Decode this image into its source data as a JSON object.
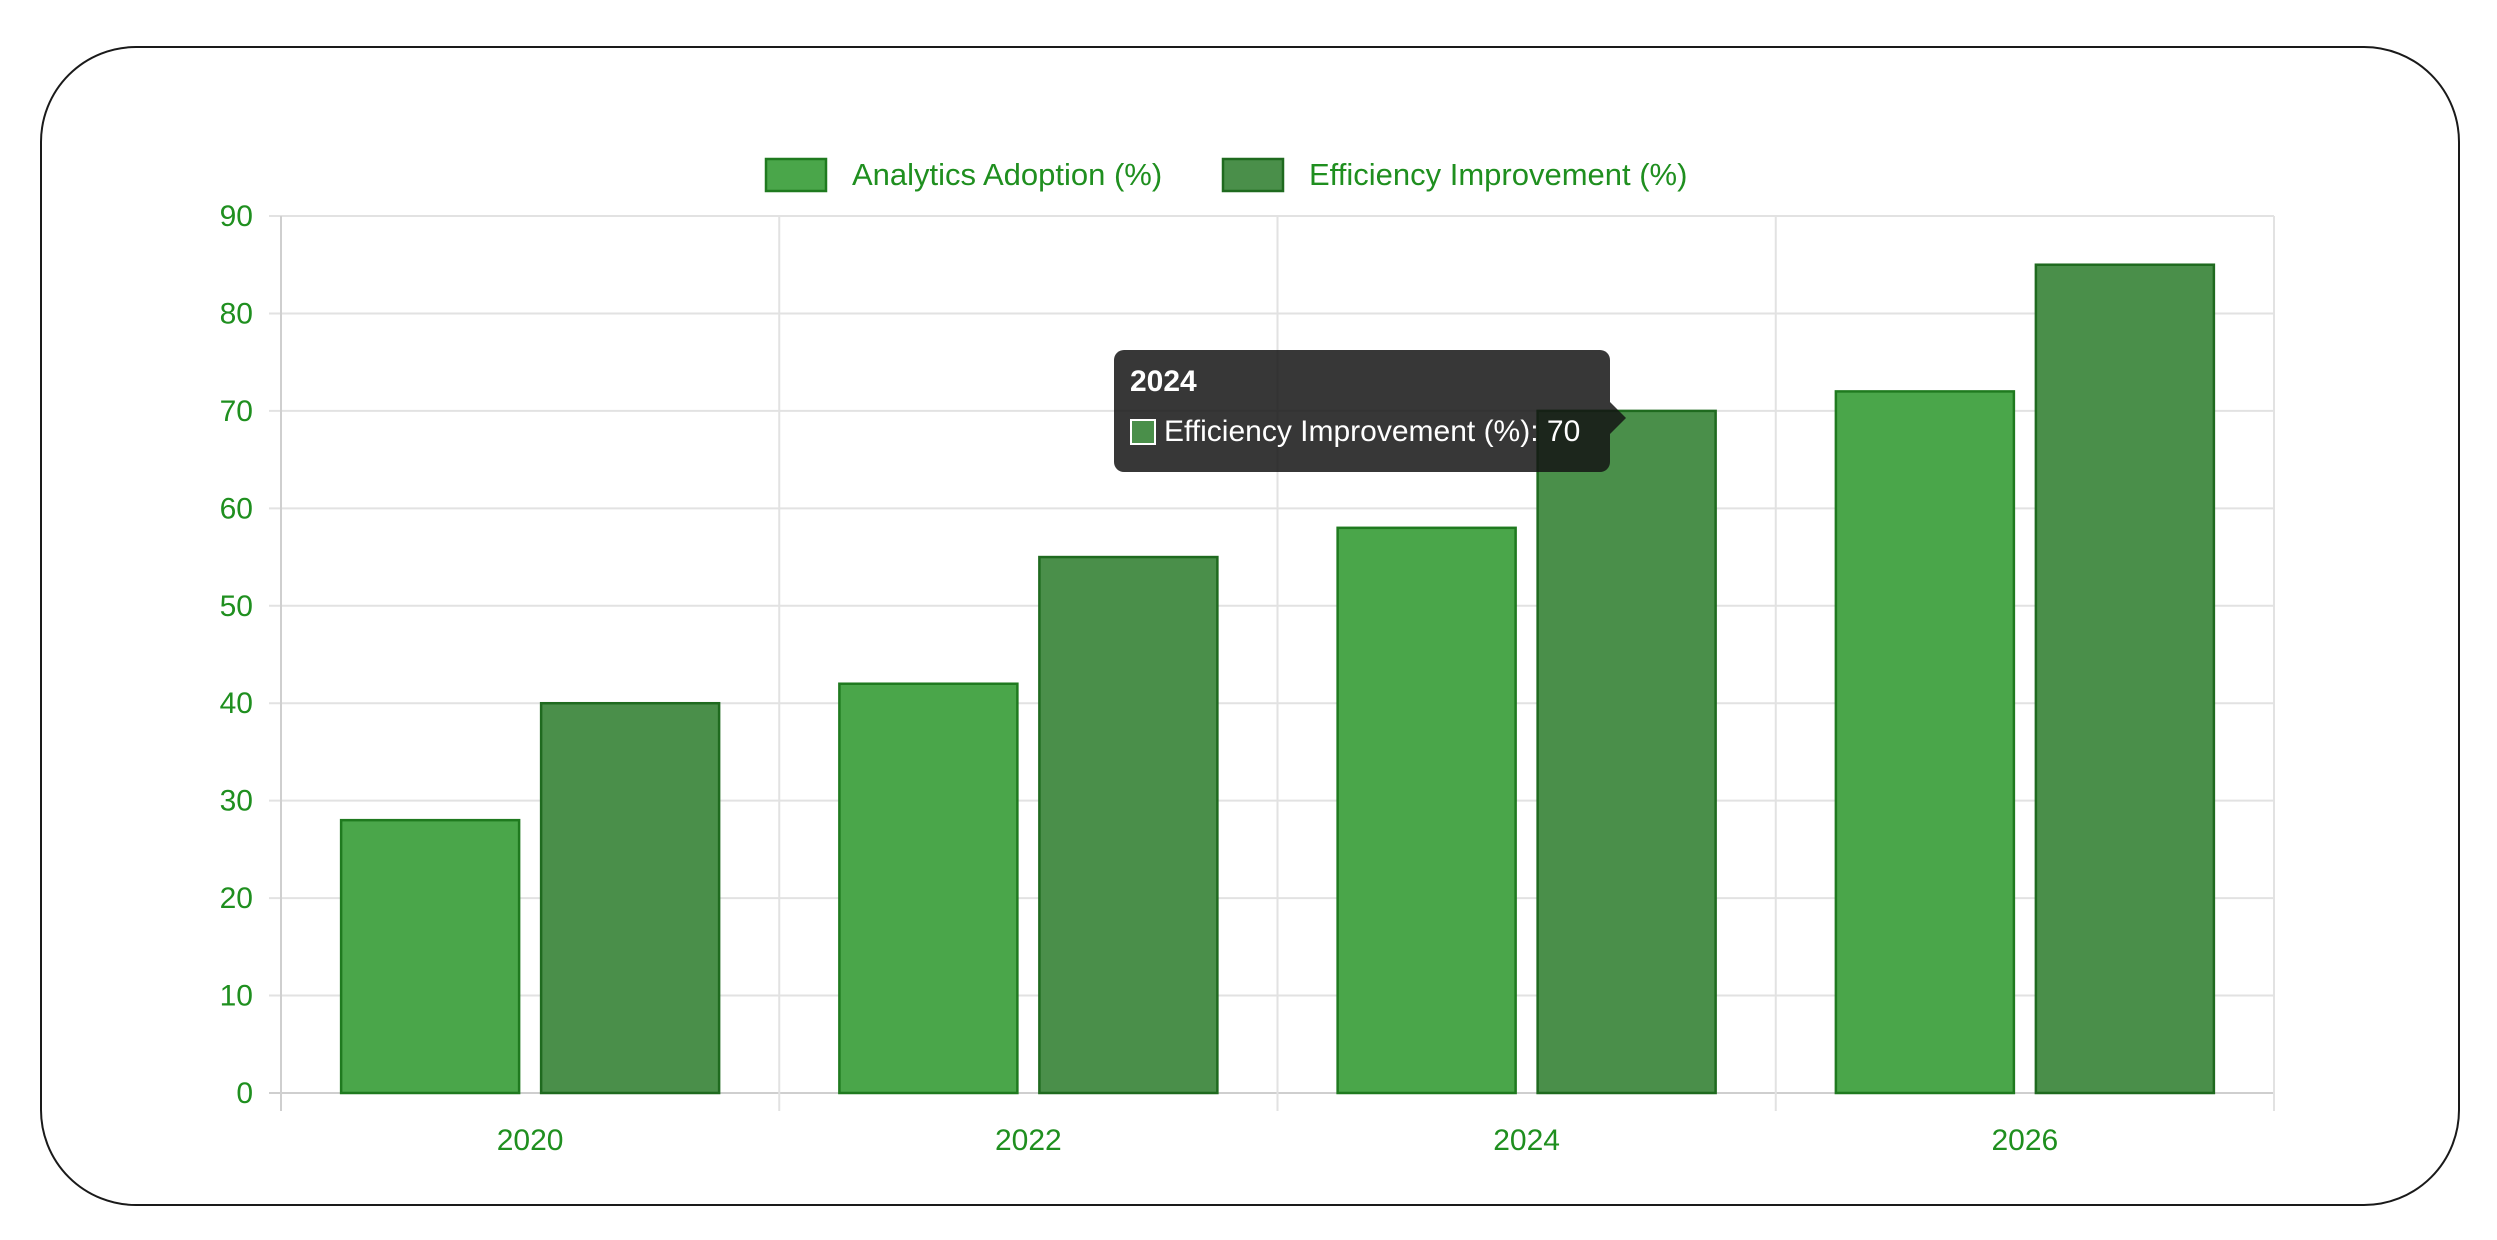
{
  "chart_data": {
    "type": "bar",
    "categories": [
      "2020",
      "2022",
      "2024",
      "2026"
    ],
    "series": [
      {
        "name": "Analytics Adoption (%)",
        "values": [
          28,
          42,
          58,
          72
        ],
        "color": "#4aa64a",
        "border": "#1f7a1f"
      },
      {
        "name": "Efficiency Improvement (%)",
        "values": [
          40,
          55,
          70,
          85
        ],
        "color": "#4a8f4a",
        "border": "#1f6a1f"
      }
    ],
    "ylim": [
      0,
      90
    ],
    "yticks": [
      "0",
      "10",
      "20",
      "30",
      "40",
      "50",
      "60",
      "70",
      "80",
      "90"
    ],
    "grid": true,
    "legend_position": "top-center",
    "text_color": "#1f8f1f",
    "grid_color": "#e2e2e2"
  },
  "tooltip": {
    "title": "2024",
    "label": "Efficiency Improvement (%): 70",
    "swatch_color": "#4a8f4a"
  }
}
